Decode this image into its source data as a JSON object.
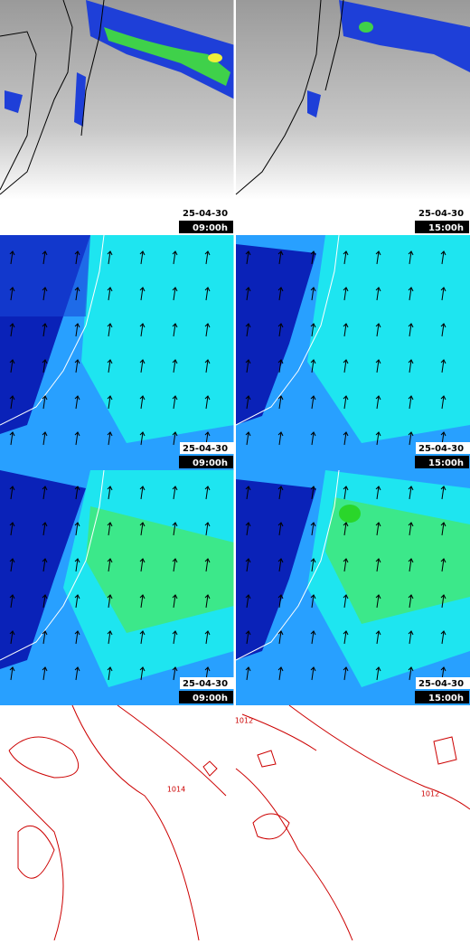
{
  "panels": [
    {
      "date": "25-04-30",
      "time": "09:00h"
    },
    {
      "date": "25-04-30",
      "time": "15:00h"
    },
    {
      "date": "25-04-30",
      "time": "09:00h"
    },
    {
      "date": "25-04-30",
      "time": "15:00h"
    },
    {
      "date": "25-04-30",
      "time": "09:00h"
    },
    {
      "date": "25-04-30",
      "time": "15:00h"
    }
  ],
  "contour_labels": {
    "left": [
      "1014"
    ],
    "right": [
      "1012",
      "1012"
    ]
  }
}
